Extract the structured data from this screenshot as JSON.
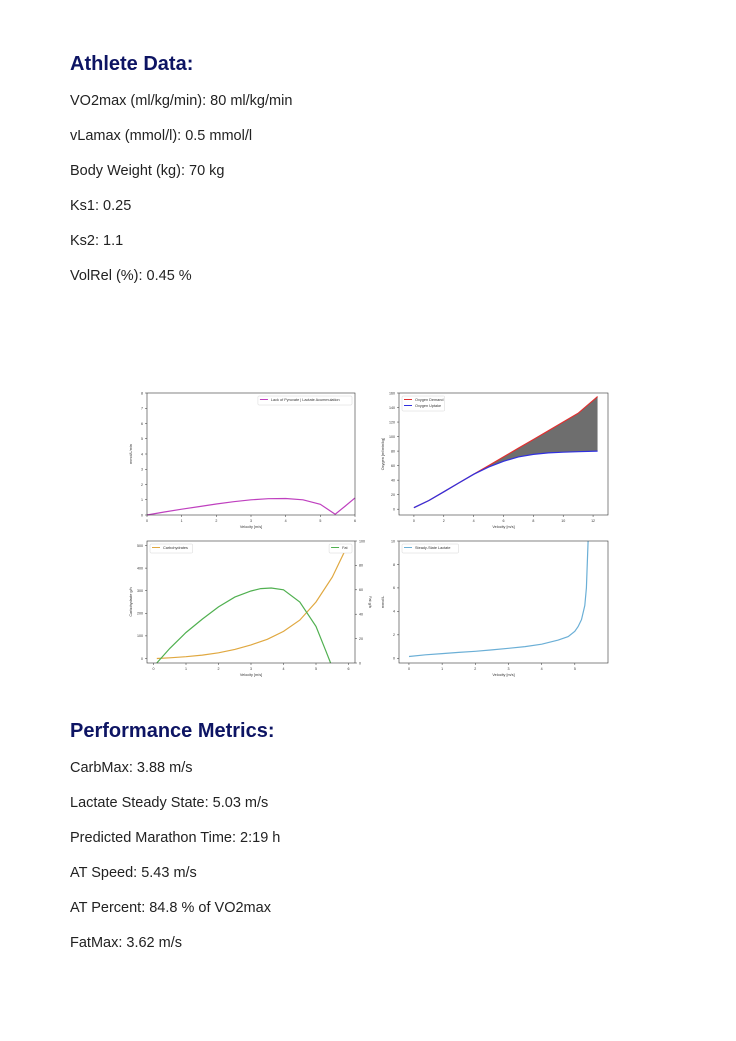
{
  "athlete": {
    "heading": "Athlete Data:",
    "lines": [
      "VO2max (ml/kg/min): 80 ml/kg/min",
      "vLamax (mmol/l): 0.5 mmol/l",
      "Body Weight (kg): 70 kg",
      "Ks1: 0.25",
      "Ks2: 1.1",
      "VolRel (%): 0.45 %"
    ]
  },
  "metrics": {
    "heading": "Performance Metrics:",
    "lines": [
      "CarbMax: 3.88 m/s",
      "Lactate Steady State: 5.03 m/s",
      "Predicted Marathon Time: 2:19 h",
      "AT Speed: 5.43 m/s",
      "AT Percent: 84.8 % of VO2max",
      "FatMax: 3.62 m/s"
    ]
  },
  "chart_data": [
    {
      "type": "line",
      "xlabel": "Velocity [m/s]",
      "ylabel": "mmol/L/min",
      "xlim": [
        0,
        6
      ],
      "ylim": [
        0,
        8
      ],
      "xticks": [
        0,
        1,
        2,
        3,
        4,
        5,
        6
      ],
      "yticks": [
        0,
        1,
        2,
        3,
        4,
        5,
        6,
        7,
        8
      ],
      "legend": "top-right",
      "series": [
        {
          "name": "Lack of Pyruvate | Lactate Acummulation",
          "color": "#bf40bf",
          "x": [
            0,
            0.5,
            1,
            1.5,
            2,
            2.5,
            3,
            3.5,
            4,
            4.5,
            5,
            5.43,
            5.7,
            6
          ],
          "y": [
            0,
            0.2,
            0.38,
            0.55,
            0.72,
            0.87,
            1.0,
            1.07,
            1.08,
            1.0,
            0.7,
            0.05,
            0.55,
            1.12
          ]
        }
      ]
    },
    {
      "type": "area",
      "xlabel": "Velocity [m/s]",
      "ylabel": "Oxygen [ml/min/kg]",
      "xlim": [
        -1,
        13
      ],
      "ylim": [
        -8,
        160
      ],
      "xticks": [
        0,
        2,
        4,
        6,
        8,
        10,
        12
      ],
      "yticks": [
        0,
        20,
        40,
        60,
        80,
        100,
        120,
        140,
        160
      ],
      "legend": "top-left",
      "series": [
        {
          "name": "Oxygen Demand",
          "color": "#e03030",
          "x": [
            0,
            1,
            2,
            3,
            4,
            5,
            6,
            7,
            8,
            9,
            10,
            11,
            12.3
          ],
          "y": [
            2,
            12,
            24,
            36,
            48,
            60,
            72,
            84,
            96,
            108,
            120,
            132,
            155
          ]
        },
        {
          "name": "Oxygen Uptake",
          "color": "#3030e0",
          "x": [
            0,
            1,
            2,
            3,
            4,
            5,
            6,
            7,
            8,
            9,
            10,
            11,
            12.3
          ],
          "y": [
            2,
            12,
            24,
            36,
            48,
            58,
            66,
            72,
            75.5,
            77.5,
            78.5,
            79.2,
            80
          ]
        }
      ]
    },
    {
      "type": "line",
      "xlabel": "Velocity [m/s]",
      "ylabel": "Carbohydrate g/h",
      "y2label": "Fat g/h",
      "xlim": [
        -0.2,
        6.2
      ],
      "ylim": [
        -20,
        520
      ],
      "y2lim": [
        0,
        100
      ],
      "xticks": [
        0,
        1,
        2,
        3,
        4,
        5,
        6
      ],
      "yticks": [
        0,
        100,
        200,
        300,
        400,
        500
      ],
      "y2ticks": [
        0,
        20,
        40,
        60,
        80,
        100
      ],
      "series": [
        {
          "name": "Carbohydrates",
          "color": "#e0a840",
          "axis": "left",
          "x": [
            0.1,
            0.5,
            1,
            1.5,
            2,
            2.5,
            3,
            3.5,
            4,
            4.5,
            5,
            5.5,
            5.9
          ],
          "y": [
            0,
            3,
            8,
            15,
            25,
            40,
            60,
            85,
            120,
            170,
            250,
            360,
            480
          ]
        },
        {
          "name": "Fat",
          "color": "#50b050",
          "axis": "right",
          "x": [
            0.1,
            0.5,
            1,
            1.5,
            2,
            2.5,
            3,
            3.3,
            3.62,
            4,
            4.5,
            5,
            5.3,
            5.45
          ],
          "y": [
            0,
            12,
            25,
            36,
            46,
            54,
            59,
            61,
            61.5,
            60,
            50,
            30,
            10,
            0
          ]
        }
      ]
    },
    {
      "type": "line",
      "xlabel": "Velocity [m/s]",
      "ylabel": "mmol/L",
      "xlim": [
        -0.3,
        6
      ],
      "ylim": [
        -0.4,
        10
      ],
      "xticks": [
        0,
        1,
        2,
        3,
        4,
        5
      ],
      "yticks": [
        0,
        2,
        4,
        6,
        8,
        10
      ],
      "legend": "top-left",
      "series": [
        {
          "name": "Steady-State Lactate",
          "color": "#6bafd6",
          "x": [
            0,
            0.5,
            1,
            1.5,
            2,
            2.5,
            3,
            3.5,
            4,
            4.5,
            4.8,
            5.0,
            5.1,
            5.2,
            5.3,
            5.35,
            5.4
          ],
          "y": [
            0.15,
            0.3,
            0.4,
            0.5,
            0.6,
            0.72,
            0.85,
            1.0,
            1.2,
            1.55,
            1.85,
            2.3,
            2.7,
            3.3,
            4.5,
            6.0,
            10
          ]
        }
      ]
    }
  ]
}
